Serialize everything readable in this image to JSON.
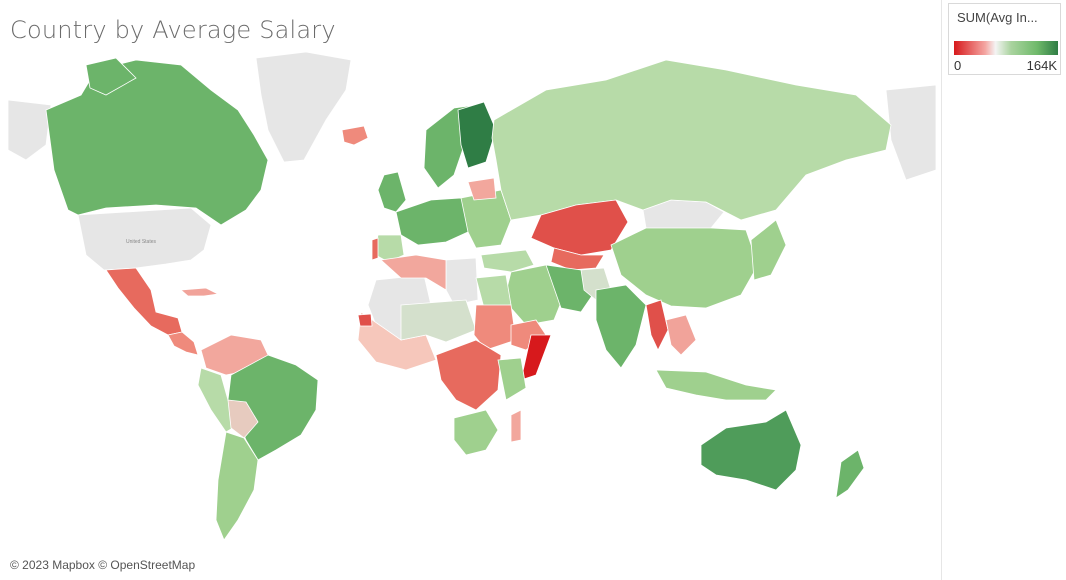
{
  "title": "Country by Average Salary",
  "attribution": "© 2023 Mapbox © OpenStreetMap",
  "legend": {
    "title": "SUM(Avg In...",
    "min_label": "0",
    "max_label": "164K",
    "colors": {
      "low": "#d7191c",
      "mid": "#f4f4f4",
      "high": "#2f7d45"
    }
  },
  "map_labels": {
    "usa": "United States"
  }
}
